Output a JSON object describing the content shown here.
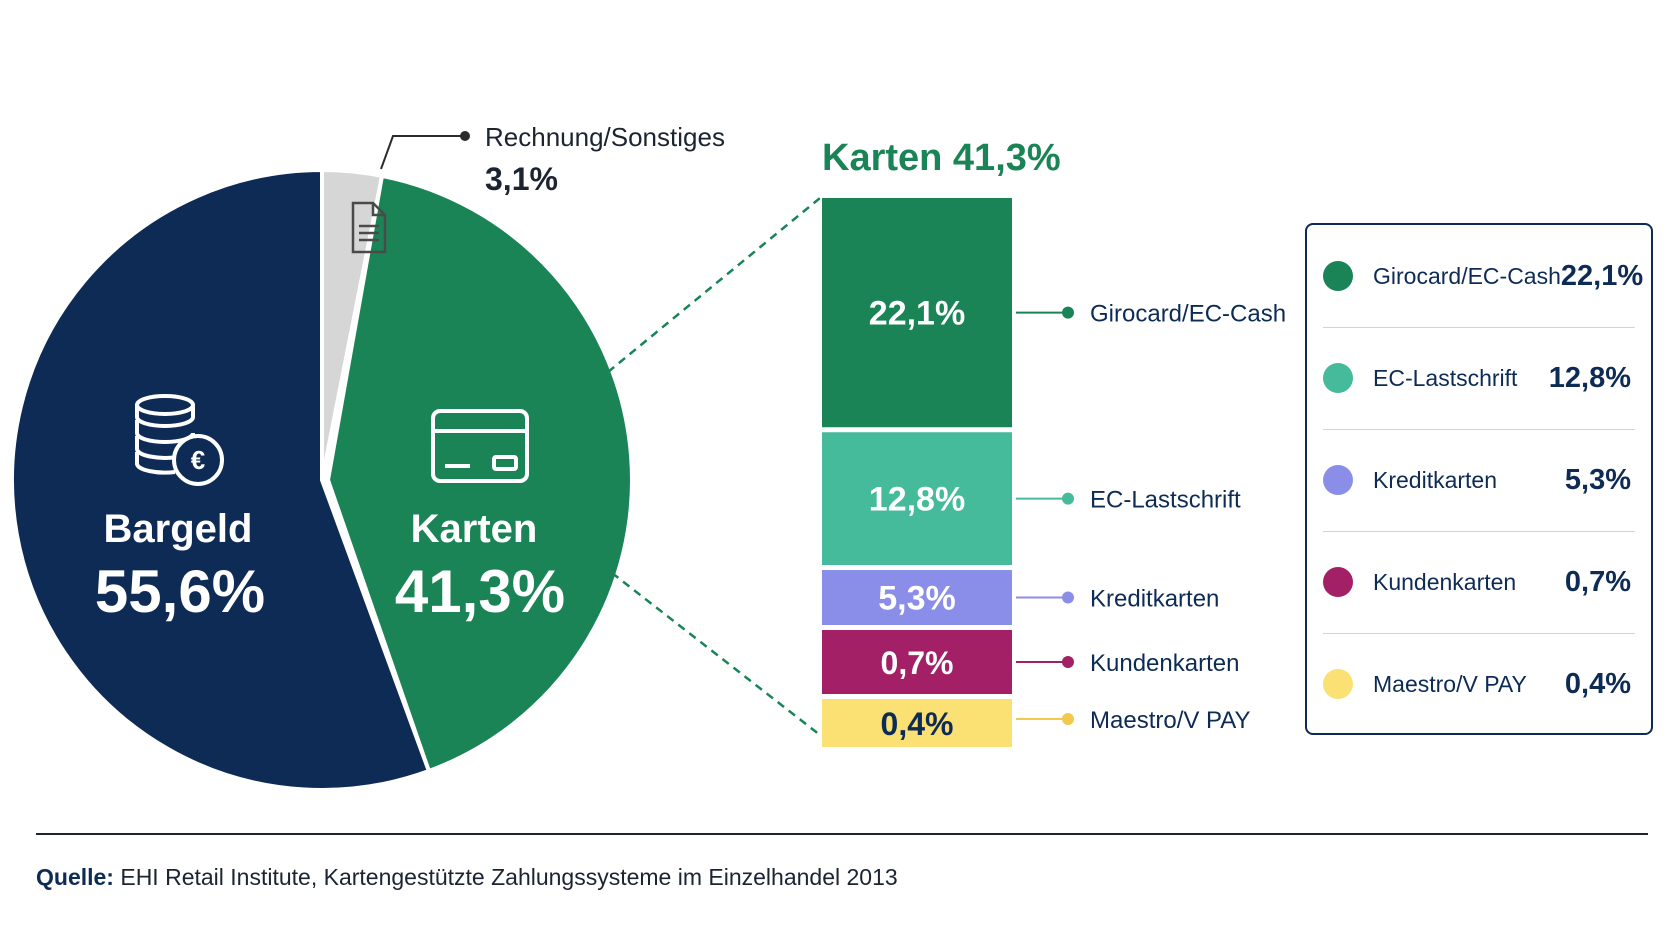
{
  "chart_data": [
    {
      "type": "pie",
      "slices": [
        {
          "label": "Bargeld",
          "value": 55.6,
          "value_label": "55,6%",
          "color": "#0d2b55"
        },
        {
          "label": "Karten",
          "value": 41.3,
          "value_label": "41,3%",
          "color": "#1a8456"
        },
        {
          "label": "Rechnung/Sonstiges",
          "value": 3.1,
          "value_label": "3,1%",
          "color": "#d6d6d6"
        }
      ]
    },
    {
      "type": "bar",
      "stacked": true,
      "title": "Karten 41,3%",
      "categories": [
        "Girocard/EC-Cash",
        "EC-Lastschrift",
        "Kreditkarten",
        "Kundenkarten",
        "Maestro/V PAY"
      ],
      "values": [
        22.1,
        12.8,
        5.3,
        0.7,
        0.4
      ],
      "value_labels": [
        "22,1%",
        "12,8%",
        "5,3%",
        "0,7%",
        "0,4%"
      ],
      "colors": [
        "#1a8456",
        "#45bb9c",
        "#8b8ee8",
        "#a31f66",
        "#fbe173"
      ]
    }
  ],
  "legend": {
    "items": [
      {
        "label": "Girocard/EC-Cash",
        "value": "22,1%",
        "color": "#1a8456"
      },
      {
        "label": "EC-Lastschrift",
        "value": "12,8%",
        "color": "#45bb9c"
      },
      {
        "label": "Kreditkarten",
        "value": "5,3%",
        "color": "#8b8ee8"
      },
      {
        "label": "Kundenkarten",
        "value": "0,7%",
        "color": "#a31f66"
      },
      {
        "label": "Maestro/V PAY",
        "value": "0,4%",
        "color": "#fbe173"
      }
    ]
  },
  "icons": {
    "bargeld": "coin-stack-euro-icon",
    "karten": "credit-card-icon",
    "sonstiges": "document-icon"
  },
  "source": {
    "label": "Quelle:",
    "text": "EHI Retail Institute, Kartengestützte Zahlungssysteme im Einzelhandel 2013"
  }
}
